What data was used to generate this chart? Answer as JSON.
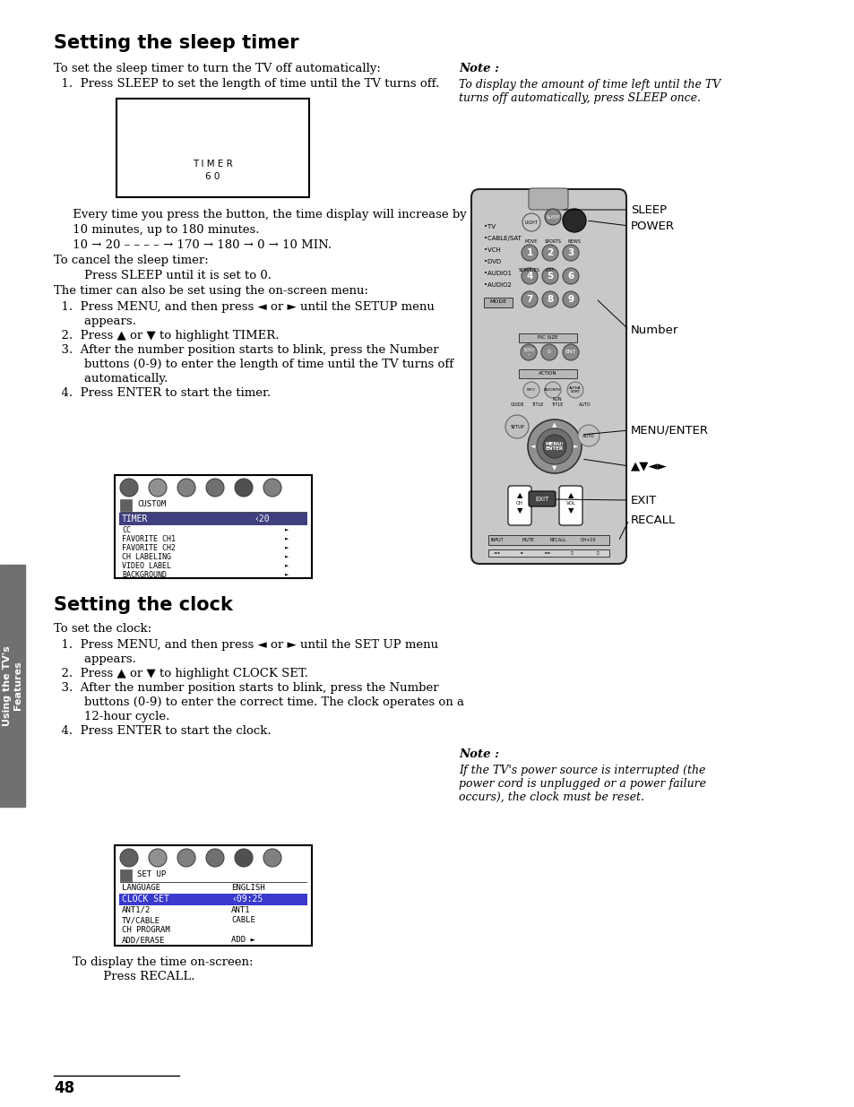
{
  "bg_color": "#ffffff",
  "section1_title": "Setting the sleep timer",
  "section1_intro": "To set the sleep timer to turn the TV off automatically:",
  "section1_step1": "  1.  Press SLEEP to set the length of time until the TV turns off.",
  "timer_line1": "T I M E R",
  "timer_line2": "6 0",
  "para1": "     Every time you press the button, the time display will increase by",
  "para2": "     10 minutes, up to 180 minutes.",
  "para3": "     10 → 20 – – – – → 170 → 180 → 0 → 10 MIN.",
  "cancel_line1": "To cancel the sleep timer:",
  "cancel_line2": "        Press SLEEP until it is set to 0.",
  "onscreen": "The timer can also be set using the on-screen menu:",
  "timer_steps": [
    "  1.  Press MENU, and then press ◄ or ► until the SETUP menu",
    "        appears.",
    "  2.  Press ▲ or ▼ to highlight TIMER.",
    "  3.  After the number position starts to blink, press the Number",
    "        buttons (0-9) to enter the length of time until the TV turns off",
    "        automatically.",
    "  4.  Press ENTER to start the timer."
  ],
  "note1_title": "Note :",
  "note1_lines": [
    "To display the amount of time left until the TV",
    "turns off automatically, press SLEEP once."
  ],
  "remote_labels": [
    "SLEEP",
    "POWER",
    "Number",
    "MENU/ENTER",
    "▲▼◄►",
    "EXIT",
    "RECALL"
  ],
  "setup_items": [
    "TIMER",
    "CC",
    "FAVORITE CH1",
    "FAVORITE CH2",
    "CH LABELING",
    "VIDEO LABEL",
    "BACKGROUND"
  ],
  "setup_highlight": "TIMER",
  "setup_highlight_val": "‹20",
  "setup_others_val": "►",
  "section2_title": "Setting the clock",
  "section2_intro": "To set the clock:",
  "clock_steps": [
    "  1.  Press MENU, and then press ◄ or ► until the SET UP menu",
    "        appears.",
    "  2.  Press ▲ or ▼ to highlight CLOCK SET.",
    "  3.  After the number position starts to blink, press the Number",
    "        buttons (0-9) to enter the correct time. The clock operates on a",
    "        12-hour cycle.",
    "  4.  Press ENTER to start the clock."
  ],
  "note2_title": "Note :",
  "note2_lines": [
    "If the TV's power source is interrupted (the",
    "power cord is unplugged or a power failure",
    "occurs), the clock must be reset."
  ],
  "clock_menu_items": [
    "LANGUAGE",
    "CLOCK SET",
    "ANT1/2",
    "TV/CABLE",
    "CH PROGRAM",
    "ADD/ERASE"
  ],
  "clock_highlight": "CLOCK SET",
  "clock_highlight_val": "‹09:25",
  "clock_lang_val": "ENGLISH",
  "clock_ant_val": "ANT1",
  "clock_cable_val": "CABLE",
  "clock_add_val": "ADD",
  "recall_line1": "     To display the time on-screen:",
  "recall_line2": "             Press RECALL.",
  "page_num": "48",
  "sidebar_text": "Using the TV's\nFeatures",
  "sidebar_color": "#707070"
}
